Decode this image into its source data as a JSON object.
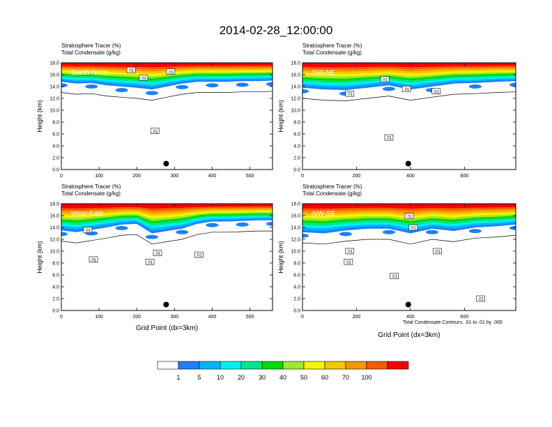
{
  "title": "2014-02-28_12:00:00",
  "subtitle_line1": "Stratosphere Tracer   (%)",
  "subtitle_line2": "Total Condensate   (g/kg)",
  "colorbar": {
    "colors": [
      "#ffffff",
      "#1e7fff",
      "#00b4ff",
      "#00f0f0",
      "#00e68c",
      "#00dc00",
      "#a0e632",
      "#f5f500",
      "#f5c800",
      "#f59600",
      "#f55a00",
      "#f50000"
    ],
    "labels": [
      "1",
      "5",
      "10",
      "20",
      "30",
      "40",
      "50",
      "60",
      "70",
      "100"
    ]
  },
  "footnote": "Total Condensate Contours: .01 to .01 by .000",
  "chart_data": [
    {
      "type": "heatmap",
      "panel_label": "South-North",
      "ylabel": "Height (km)",
      "xlabel": "",
      "xlim": [
        0,
        560
      ],
      "ylim": [
        0,
        18
      ],
      "xticks": [
        "0",
        "100",
        "200",
        "300",
        "400",
        "500"
      ],
      "yticks": [
        "0.0",
        "2.0",
        "4.0",
        "6.0",
        "8.0",
        "10.0",
        "12.0",
        "14.0",
        "16.0",
        "18.0"
      ],
      "contour_labels": [
        {
          "text": ".01",
          "x": 185,
          "y": 16.8
        },
        {
          "text": ".01",
          "x": 218,
          "y": 15.5
        },
        {
          "text": ".01",
          "x": 290,
          "y": 16.5
        },
        {
          "text": ".01",
          "x": 248,
          "y": 6.5
        }
      ],
      "marker": {
        "x": 278,
        "y": 1.0
      },
      "tracer_profile": [
        {
          "x": 0,
          "h": 14.8
        },
        {
          "x": 40,
          "h": 14.5
        },
        {
          "x": 80,
          "h": 14.6
        },
        {
          "x": 120,
          "h": 14.2
        },
        {
          "x": 160,
          "h": 14.0
        },
        {
          "x": 200,
          "h": 13.8
        },
        {
          "x": 240,
          "h": 13.5
        },
        {
          "x": 280,
          "h": 14.0
        },
        {
          "x": 320,
          "h": 14.5
        },
        {
          "x": 360,
          "h": 14.8
        },
        {
          "x": 400,
          "h": 14.8
        },
        {
          "x": 440,
          "h": 14.8
        },
        {
          "x": 480,
          "h": 14.9
        },
        {
          "x": 520,
          "h": 14.9
        },
        {
          "x": 560,
          "h": 15.0
        }
      ]
    },
    {
      "type": "heatmap",
      "panel_label": "SW-NE",
      "ylabel": "Height (km)",
      "xlabel": "",
      "xlim": [
        0,
        790
      ],
      "ylim": [
        0,
        18
      ],
      "xticks": [
        "0",
        "200",
        "400",
        "600"
      ],
      "yticks": [
        "0.0",
        "2.0",
        "4.0",
        "6.0",
        "8.0",
        "10.0",
        "12.0",
        "14.0",
        "16.0",
        "18.0"
      ],
      "contour_labels": [
        {
          "text": ".01",
          "x": 175,
          "y": 12.8
        },
        {
          "text": ".01",
          "x": 320,
          "y": 5.4
        },
        {
          "text": ".01",
          "x": 305,
          "y": 15.2
        },
        {
          "text": ".01",
          "x": 385,
          "y": 13.6
        },
        {
          "text": ".01",
          "x": 495,
          "y": 13.2
        }
      ],
      "marker": {
        "x": 392,
        "y": 1.0
      },
      "tracer_profile": [
        {
          "x": 0,
          "h": 13.8
        },
        {
          "x": 80,
          "h": 13.5
        },
        {
          "x": 160,
          "h": 13.4
        },
        {
          "x": 240,
          "h": 13.8
        },
        {
          "x": 320,
          "h": 14.2
        },
        {
          "x": 400,
          "h": 13.5
        },
        {
          "x": 480,
          "h": 14.0
        },
        {
          "x": 560,
          "h": 14.5
        },
        {
          "x": 640,
          "h": 14.6
        },
        {
          "x": 720,
          "h": 14.8
        },
        {
          "x": 790,
          "h": 14.9
        }
      ]
    },
    {
      "type": "heatmap",
      "panel_label": "West-East",
      "ylabel": "Height (km)",
      "xlabel": "Grid Point (dx=3km)",
      "xlim": [
        0,
        560
      ],
      "ylim": [
        0,
        18
      ],
      "xticks": [
        "0",
        "100",
        "200",
        "300",
        "400",
        "500"
      ],
      "yticks": [
        "0.0",
        "2.0",
        "4.0",
        "6.0",
        "8.0",
        "10.0",
        "12.0",
        "14.0",
        "16.0",
        "18.0"
      ],
      "contour_labels": [
        {
          "text": ".01",
          "x": 70,
          "y": 13.6
        },
        {
          "text": ".01",
          "x": 85,
          "y": 8.6
        },
        {
          "text": ".01",
          "x": 235,
          "y": 8.2
        },
        {
          "text": ".01",
          "x": 255,
          "y": 9.7
        },
        {
          "text": ".01",
          "x": 365,
          "y": 9.4
        }
      ],
      "marker": {
        "x": 278,
        "y": 1.0
      },
      "tracer_profile": [
        {
          "x": 0,
          "h": 13.5
        },
        {
          "x": 40,
          "h": 13.2
        },
        {
          "x": 80,
          "h": 13.6
        },
        {
          "x": 120,
          "h": 14.0
        },
        {
          "x": 160,
          "h": 14.5
        },
        {
          "x": 200,
          "h": 14.6
        },
        {
          "x": 240,
          "h": 13.0
        },
        {
          "x": 280,
          "h": 13.4
        },
        {
          "x": 320,
          "h": 13.8
        },
        {
          "x": 360,
          "h": 14.6
        },
        {
          "x": 400,
          "h": 15.0
        },
        {
          "x": 440,
          "h": 15.0
        },
        {
          "x": 480,
          "h": 15.1
        },
        {
          "x": 520,
          "h": 15.2
        },
        {
          "x": 560,
          "h": 15.2
        }
      ]
    },
    {
      "type": "heatmap",
      "panel_label": "NW-SE",
      "ylabel": "Height (km)",
      "xlabel": "Grid Point (dx=3km)",
      "xlim": [
        0,
        790
      ],
      "ylim": [
        0,
        18
      ],
      "xticks": [
        "0",
        "200",
        "400",
        "600"
      ],
      "yticks": [
        "0.0",
        "2.0",
        "4.0",
        "6.0",
        "8.0",
        "10.0",
        "12.0",
        "14.0",
        "16.0",
        "18.0"
      ],
      "contour_labels": [
        {
          "text": ".01",
          "x": 175,
          "y": 10.0
        },
        {
          "text": ".01",
          "x": 170,
          "y": 8.2
        },
        {
          "text": ".01",
          "x": 340,
          "y": 5.8
        },
        {
          "text": ".01",
          "x": 395,
          "y": 15.9
        },
        {
          "text": ".01",
          "x": 410,
          "y": 14.0
        },
        {
          "text": ".01",
          "x": 500,
          "y": 10.0
        },
        {
          "text": ".01",
          "x": 660,
          "y": 2.0
        }
      ],
      "marker": {
        "x": 392,
        "y": 1.0
      },
      "tracer_profile": [
        {
          "x": 0,
          "h": 13.2
        },
        {
          "x": 80,
          "h": 13.0
        },
        {
          "x": 160,
          "h": 13.5
        },
        {
          "x": 240,
          "h": 13.8
        },
        {
          "x": 320,
          "h": 13.8
        },
        {
          "x": 400,
          "h": 13.0
        },
        {
          "x": 480,
          "h": 13.8
        },
        {
          "x": 560,
          "h": 13.4
        },
        {
          "x": 640,
          "h": 14.0
        },
        {
          "x": 720,
          "h": 14.2
        },
        {
          "x": 790,
          "h": 14.5
        }
      ]
    }
  ]
}
